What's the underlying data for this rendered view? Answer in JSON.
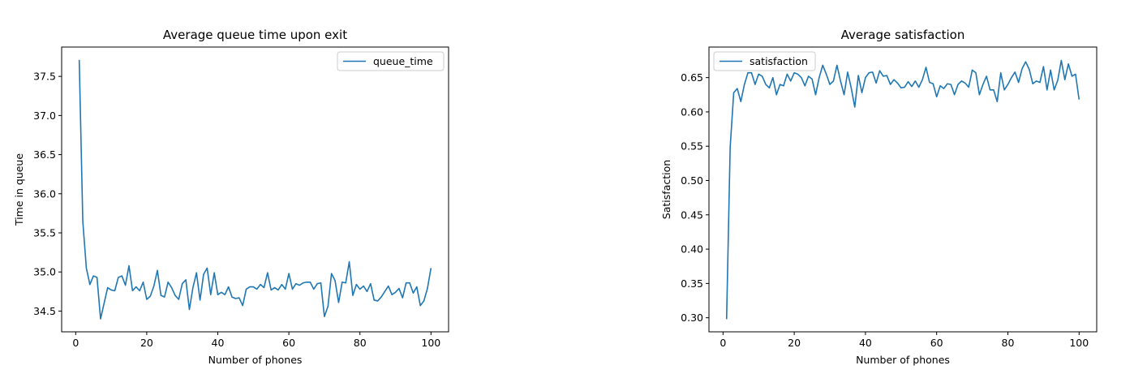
{
  "chart_data": [
    {
      "type": "line",
      "title": "Average queue time upon exit",
      "xlabel": "Number of phones",
      "ylabel": "Time in queue",
      "xlim": [
        -3.95,
        104.95
      ],
      "ylim": [
        34.235,
        37.875
      ],
      "xticks": [
        0,
        20,
        40,
        60,
        80,
        100
      ],
      "xtick_labels": [
        "0",
        "20",
        "40",
        "60",
        "80",
        "100"
      ],
      "yticks": [
        34.5,
        35.0,
        35.5,
        36.0,
        36.5,
        37.0,
        37.5
      ],
      "ytick_labels": [
        "34.5",
        "35.0",
        "35.5",
        "36.0",
        "36.5",
        "37.0",
        "37.5"
      ],
      "grid": false,
      "legend_position": "top-right",
      "series": [
        {
          "name": "queue_time",
          "color": "#1f77b4",
          "x": [
            1,
            2,
            3,
            4,
            5,
            6,
            7,
            8,
            9,
            10,
            11,
            12,
            13,
            14,
            15,
            16,
            17,
            18,
            19,
            20,
            21,
            22,
            23,
            24,
            25,
            26,
            27,
            28,
            29,
            30,
            31,
            32,
            33,
            34,
            35,
            36,
            37,
            38,
            39,
            40,
            41,
            42,
            43,
            44,
            45,
            46,
            47,
            48,
            49,
            50,
            51,
            52,
            53,
            54,
            55,
            56,
            57,
            58,
            59,
            60,
            61,
            62,
            63,
            64,
            65,
            66,
            67,
            68,
            69,
            70,
            71,
            72,
            73,
            74,
            75,
            76,
            77,
            78,
            79,
            80,
            81,
            82,
            83,
            84,
            85,
            86,
            87,
            88,
            89,
            90,
            91,
            92,
            93,
            94,
            95,
            96,
            97,
            98,
            99,
            100
          ],
          "values": [
            37.71,
            35.65,
            35.05,
            34.84,
            34.95,
            34.93,
            34.4,
            34.6,
            34.8,
            34.77,
            34.76,
            34.93,
            34.95,
            34.83,
            35.08,
            34.76,
            34.81,
            34.76,
            34.87,
            34.65,
            34.69,
            34.82,
            35.02,
            34.7,
            34.68,
            34.87,
            34.8,
            34.7,
            34.65,
            34.85,
            34.9,
            34.52,
            34.8,
            34.99,
            34.64,
            34.97,
            35.05,
            34.71,
            34.99,
            34.71,
            34.74,
            34.71,
            34.81,
            34.68,
            34.66,
            34.67,
            34.57,
            34.78,
            34.81,
            34.81,
            34.78,
            34.84,
            34.8,
            34.99,
            34.77,
            34.8,
            34.77,
            34.84,
            34.78,
            34.98,
            34.78,
            34.85,
            34.83,
            34.86,
            34.87,
            34.87,
            34.78,
            34.85,
            34.86,
            34.43,
            34.56,
            34.98,
            34.89,
            34.61,
            34.87,
            34.86,
            35.13,
            34.7,
            34.84,
            34.78,
            34.82,
            34.75,
            34.85,
            34.64,
            34.63,
            34.68,
            34.75,
            34.82,
            34.71,
            34.74,
            34.79,
            34.67,
            34.86,
            34.86,
            34.73,
            34.81,
            34.57,
            34.63,
            34.79,
            35.05
          ]
        }
      ]
    },
    {
      "type": "line",
      "title": "Average satisfaction",
      "xlabel": "Number of phones",
      "ylabel": "Satisfaction",
      "xlim": [
        -3.95,
        104.95
      ],
      "ylim": [
        0.2795,
        0.6945
      ],
      "xticks": [
        0,
        20,
        40,
        60,
        80,
        100
      ],
      "xtick_labels": [
        "0",
        "20",
        "40",
        "60",
        "80",
        "100"
      ],
      "yticks": [
        0.3,
        0.35,
        0.4,
        0.45,
        0.5,
        0.55,
        0.6,
        0.65
      ],
      "ytick_labels": [
        "0.30",
        "0.35",
        "0.40",
        "0.45",
        "0.50",
        "0.55",
        "0.60",
        "0.65"
      ],
      "grid": false,
      "legend_position": "top-left",
      "series": [
        {
          "name": "satisfaction",
          "color": "#1f77b4",
          "x": [
            1,
            2,
            3,
            4,
            5,
            6,
            7,
            8,
            9,
            10,
            11,
            12,
            13,
            14,
            15,
            16,
            17,
            18,
            19,
            20,
            21,
            22,
            23,
            24,
            25,
            26,
            27,
            28,
            29,
            30,
            31,
            32,
            33,
            34,
            35,
            36,
            37,
            38,
            39,
            40,
            41,
            42,
            43,
            44,
            45,
            46,
            47,
            48,
            49,
            50,
            51,
            52,
            53,
            54,
            55,
            56,
            57,
            58,
            59,
            60,
            61,
            62,
            63,
            64,
            65,
            66,
            67,
            68,
            69,
            70,
            71,
            72,
            73,
            74,
            75,
            76,
            77,
            78,
            79,
            80,
            81,
            82,
            83,
            84,
            85,
            86,
            87,
            88,
            89,
            90,
            91,
            92,
            93,
            94,
            95,
            96,
            97,
            98,
            99,
            100
          ],
          "values": [
            0.298,
            0.548,
            0.628,
            0.634,
            0.615,
            0.64,
            0.657,
            0.657,
            0.64,
            0.655,
            0.652,
            0.64,
            0.635,
            0.65,
            0.625,
            0.64,
            0.638,
            0.655,
            0.645,
            0.657,
            0.655,
            0.65,
            0.638,
            0.652,
            0.648,
            0.625,
            0.65,
            0.668,
            0.655,
            0.64,
            0.645,
            0.668,
            0.645,
            0.625,
            0.658,
            0.635,
            0.607,
            0.653,
            0.628,
            0.65,
            0.657,
            0.658,
            0.642,
            0.66,
            0.652,
            0.653,
            0.64,
            0.647,
            0.642,
            0.635,
            0.636,
            0.644,
            0.637,
            0.645,
            0.636,
            0.647,
            0.665,
            0.643,
            0.641,
            0.622,
            0.638,
            0.634,
            0.641,
            0.64,
            0.625,
            0.64,
            0.645,
            0.642,
            0.636,
            0.661,
            0.657,
            0.625,
            0.64,
            0.652,
            0.632,
            0.632,
            0.615,
            0.657,
            0.632,
            0.64,
            0.65,
            0.658,
            0.643,
            0.663,
            0.673,
            0.662,
            0.641,
            0.645,
            0.643,
            0.666,
            0.632,
            0.661,
            0.632,
            0.646,
            0.675,
            0.647,
            0.67,
            0.652,
            0.655,
            0.618
          ]
        }
      ]
    }
  ]
}
